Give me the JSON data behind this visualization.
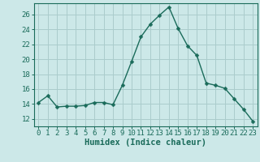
{
  "x": [
    0,
    1,
    2,
    3,
    4,
    5,
    6,
    7,
    8,
    9,
    10,
    11,
    12,
    13,
    14,
    15,
    16,
    17,
    18,
    19,
    20,
    21,
    22,
    23
  ],
  "y": [
    14.2,
    15.1,
    13.6,
    13.7,
    13.7,
    13.8,
    14.2,
    14.2,
    13.9,
    16.5,
    19.7,
    23.0,
    24.7,
    25.9,
    27.0,
    24.1,
    21.8,
    20.5,
    16.8,
    16.5,
    16.1,
    14.7,
    13.3,
    11.7
  ],
  "line_color": "#1a6b5a",
  "marker": "D",
  "marker_size": 2.5,
  "bg_color": "#cce8e8",
  "grid_color": "#aacccc",
  "xlabel": "Humidex (Indice chaleur)",
  "xlim": [
    -0.5,
    23.5
  ],
  "ylim": [
    11.0,
    27.5
  ],
  "yticks": [
    12,
    14,
    16,
    18,
    20,
    22,
    24,
    26
  ],
  "xticks": [
    0,
    1,
    2,
    3,
    4,
    5,
    6,
    7,
    8,
    9,
    10,
    11,
    12,
    13,
    14,
    15,
    16,
    17,
    18,
    19,
    20,
    21,
    22,
    23
  ],
  "tick_color": "#1a6b5a",
  "axis_color": "#1a6b5a",
  "label_color": "#1a6b5a",
  "xlabel_fontsize": 7.5,
  "tick_fontsize": 6.5
}
